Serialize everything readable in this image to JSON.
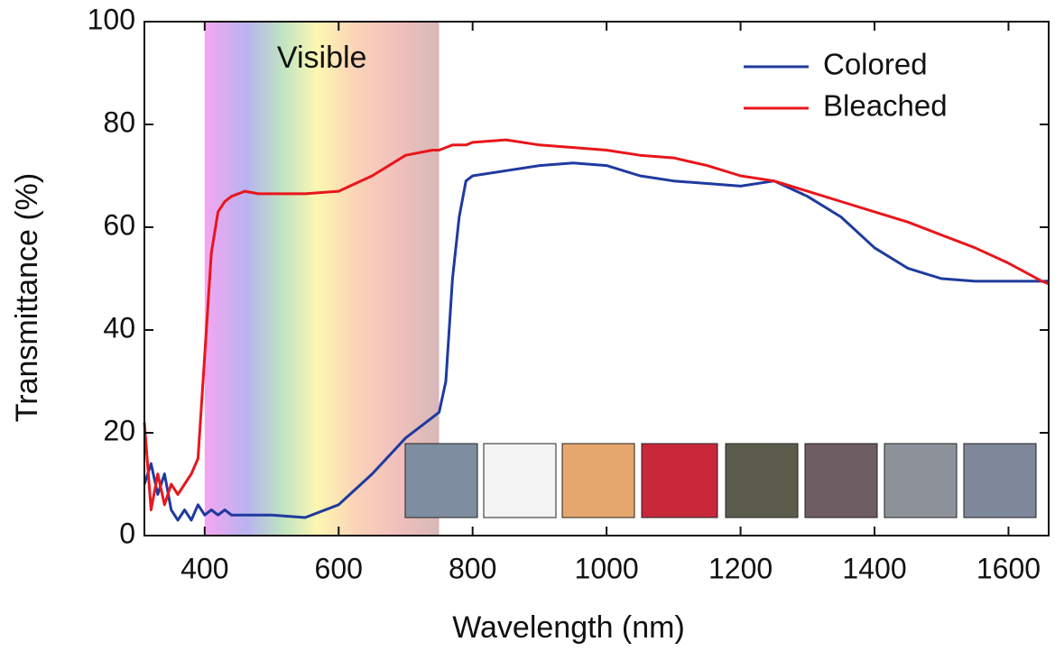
{
  "chart_data": {
    "type": "line",
    "xlabel": "Wavelength (nm)",
    "ylabel": "Transmittance (%)",
    "annotation": "Visible",
    "band": [
      400,
      750
    ],
    "x": [
      310,
      320,
      330,
      340,
      350,
      360,
      370,
      380,
      390,
      400,
      410,
      420,
      430,
      440,
      460,
      480,
      500,
      550,
      600,
      650,
      700,
      740,
      750,
      760,
      770,
      780,
      790,
      800,
      850,
      900,
      950,
      1000,
      1050,
      1100,
      1150,
      1200,
      1250,
      1300,
      1350,
      1400,
      1450,
      1500,
      1550,
      1600,
      1650,
      1660
    ],
    "series": [
      {
        "name": "Colored",
        "color": "#1f3a9e",
        "values": [
          10,
          14,
          8,
          12,
          5,
          3,
          5,
          3,
          6,
          4,
          5,
          4,
          5,
          4,
          4,
          4,
          4,
          3.5,
          6,
          12,
          19,
          23,
          24,
          30,
          50,
          62,
          69,
          70,
          71,
          72,
          72.5,
          72,
          70,
          69,
          68.5,
          68,
          69,
          66,
          62,
          56,
          52,
          50,
          49.5,
          49.5,
          49.5,
          49.5
        ]
      },
      {
        "name": "Bleached",
        "color": "#e8161b",
        "values": [
          22,
          5,
          12,
          6,
          10,
          8,
          10,
          12,
          15,
          35,
          55,
          63,
          65,
          66,
          67,
          66.5,
          66.5,
          66.5,
          67,
          70,
          74,
          75,
          75,
          75.5,
          76,
          76,
          76,
          76.5,
          77,
          76,
          75.5,
          75,
          74,
          73.5,
          72,
          70,
          69,
          67,
          65,
          63,
          61,
          58.5,
          56,
          53,
          49.5,
          49
        ]
      }
    ],
    "xlim": [
      310,
      1660
    ],
    "ylim": [
      0,
      100
    ],
    "xticks": [
      400,
      600,
      800,
      1000,
      1200,
      1400,
      1600
    ],
    "yticks": [
      0,
      20,
      40,
      60,
      80,
      100
    ],
    "legend": "upper right"
  }
}
